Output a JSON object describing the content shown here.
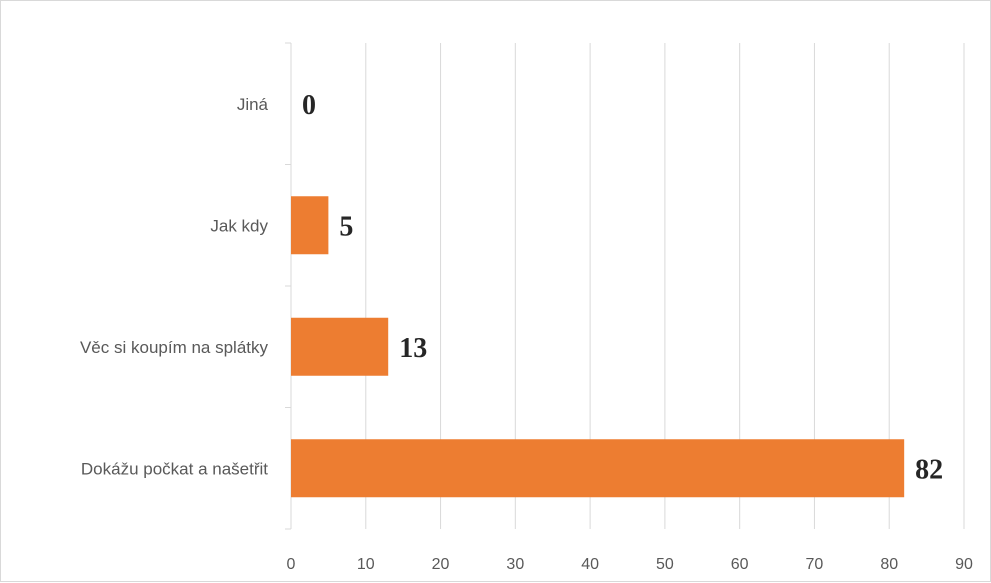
{
  "chart_data": {
    "type": "bar",
    "orientation": "horizontal",
    "categories": [
      "Jiná",
      "Jak kdy",
      "Věc si koupím na splátky",
      "Dokážu počkat a našetřit"
    ],
    "values": [
      0,
      5,
      13,
      82
    ],
    "data_labels": [
      "0",
      "5",
      "13",
      "82"
    ],
    "title": "",
    "xlabel": "",
    "ylabel": "",
    "xlim": [
      0,
      90
    ],
    "x_ticks": [
      0,
      10,
      20,
      30,
      40,
      50,
      60,
      70,
      80,
      90
    ],
    "x_tick_labels": [
      "0",
      "10",
      "20",
      "30",
      "40",
      "50",
      "60",
      "70",
      "80",
      "90"
    ],
    "grid": "vertical",
    "legend": "none",
    "bar_color": "#ED7D31",
    "grid_color": "#D9D9D9",
    "axis_color": "#D9D9D9"
  }
}
